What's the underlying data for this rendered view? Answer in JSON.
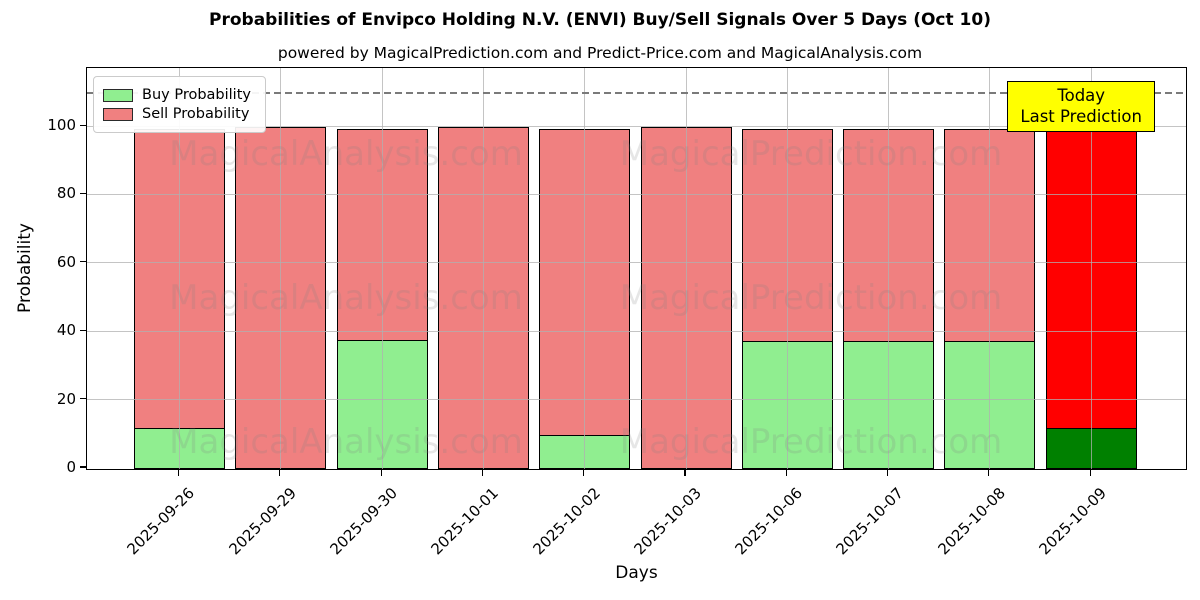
{
  "figure": {
    "title": "Probabilities of Envipco Holding N.V. (ENVI) Buy/Sell Signals Over 5 Days (Oct 10)",
    "subtitle": "powered by MagicalPrediction.com and Predict-Price.com and MagicalAnalysis.com"
  },
  "axes": {
    "xlabel": "Days",
    "ylabel": "Probability",
    "yticks": [
      0,
      20,
      40,
      60,
      80,
      100
    ],
    "grid_color": "#b0b0b0",
    "threshold_line": {
      "value": 110,
      "color": "#7a7a7a",
      "style": "dashed"
    }
  },
  "legend": {
    "items": [
      {
        "label": "Buy Probability",
        "color": "#90EE90"
      },
      {
        "label": "Sell Probability",
        "color": "#F08080"
      }
    ]
  },
  "annotation_box": {
    "lines": [
      "Today",
      "Last Prediction"
    ],
    "bg_color": "#FFFF00",
    "border_color": "#000000"
  },
  "watermarks": {
    "left_text": "MagicalAnalysis.com",
    "right_text": "MagicalPrediction.com",
    "color": "rgba(128,128,128,0.20)"
  },
  "chart_data": {
    "type": "bar",
    "stacked": true,
    "title": "Probabilities of Envipco Holding N.V. (ENVI) Buy/Sell Signals Over 5 Days (Oct 10)",
    "xlabel": "Days",
    "ylabel": "Probability",
    "ylim": [
      0,
      117
    ],
    "grid": true,
    "legend_position": "upper left",
    "categories": [
      "2025-09-26",
      "2025-09-29",
      "2025-09-30",
      "2025-10-01",
      "2025-10-02",
      "2025-10-03",
      "2025-10-06",
      "2025-10-07",
      "2025-10-08",
      "2025-10-09"
    ],
    "series": [
      {
        "name": "Buy Probability",
        "color": "#90EE90",
        "values": [
          12,
          0,
          38,
          0,
          10,
          0,
          37.5,
          37.5,
          37.5,
          12
        ]
      },
      {
        "name": "Sell Probability",
        "color": "#F08080",
        "values": [
          88,
          100,
          62,
          100,
          90,
          100,
          62.5,
          62.5,
          62.5,
          88
        ]
      }
    ],
    "today_index": 9,
    "today_colors": {
      "buy": "#008000",
      "sell": "#FF0000"
    },
    "bar_edge_color": "#000000",
    "annotation_line_y": 110
  }
}
